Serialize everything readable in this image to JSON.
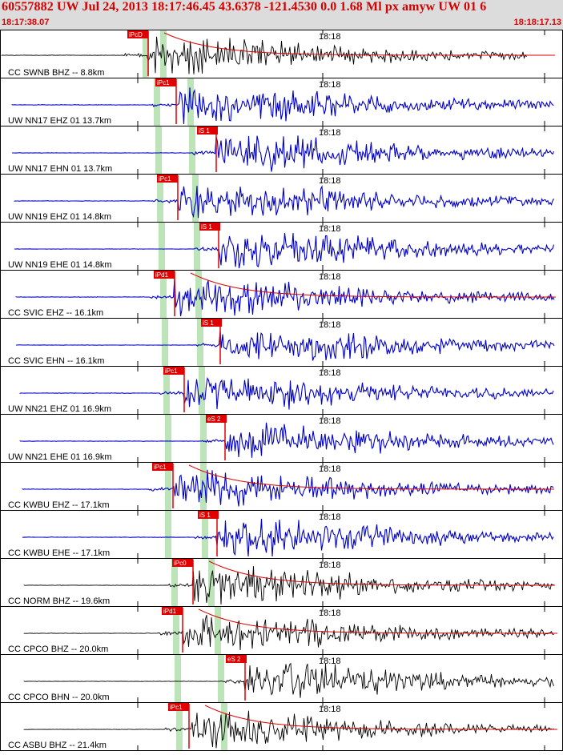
{
  "header": {
    "title": "60557882 UW Jul 24, 2013 18:17:46.45   43.6378 -121.4530  0.0 1.68 Ml px amyw UW 01   6",
    "start_time": "18:17:38.07",
    "end_time": "18:18:17.13"
  },
  "colors": {
    "header_bg": "#dcdcdc",
    "header_text": "#d40000",
    "pick": "#e00000",
    "window_band": "#bde3b8",
    "blue_trace": "#0000c8",
    "black_trace": "#000000"
  },
  "traces": [
    {
      "station": "CC SWNB BHZ -- 8.8km",
      "pick": "iPcD",
      "minute_mark": "18:18",
      "color": "black",
      "coda": true
    },
    {
      "station": "UW NN17 EHZ 01 13.7km",
      "pick": "iPc1",
      "minute_mark": "18:18",
      "color": "blue",
      "coda": false
    },
    {
      "station": "UW NN17 EHN 01 13.7km",
      "pick": "iS 1",
      "minute_mark": "18:18",
      "color": "blue",
      "coda": false
    },
    {
      "station": "UW NN19 EHZ 01 14.8km",
      "pick": "iPc1",
      "minute_mark": "18:18",
      "color": "blue",
      "coda": false
    },
    {
      "station": "UW NN19 EHE 01 14.8km",
      "pick": "iS 1",
      "minute_mark": "18:18",
      "color": "blue",
      "coda": false
    },
    {
      "station": "CC SVIC EHZ -- 16.1km",
      "pick": "iPd1",
      "minute_mark": "18:18",
      "color": "blue",
      "coda": true
    },
    {
      "station": "CC SVIC EHN -- 16.1km",
      "pick": "iS 1",
      "minute_mark": "18:18",
      "color": "blue",
      "coda": false
    },
    {
      "station": "UW NN21 EHZ 01 16.9km",
      "pick": "iPc1",
      "minute_mark": "18:18",
      "color": "blue",
      "coda": false
    },
    {
      "station": "UW NN21 EHE 01 16.9km",
      "pick": "eS 2",
      "minute_mark": "18:18",
      "color": "blue",
      "coda": false
    },
    {
      "station": "CC KWBU EHZ -- 17.1km",
      "pick": "iPc1",
      "minute_mark": "18:18",
      "color": "blue",
      "coda": true
    },
    {
      "station": "CC KWBU EHE -- 17.1km",
      "pick": "iS 1",
      "minute_mark": "18:18",
      "color": "blue",
      "coda": false
    },
    {
      "station": "CC NORM BHZ -- 19.6km",
      "pick": "iPc0",
      "minute_mark": "18:18",
      "color": "black",
      "coda": true
    },
    {
      "station": "CC CPCO BHZ -- 20.0km",
      "pick": "iPd1",
      "minute_mark": "18:18",
      "color": "black",
      "coda": true
    },
    {
      "station": "CC CPCO BHN -- 20.0km",
      "pick": "eS 2",
      "minute_mark": "18:18",
      "color": "black",
      "coda": false
    },
    {
      "station": "CC ASBU BHZ -- 21.4km",
      "pick": "iPc1",
      "minute_mark": "18:18",
      "color": "black",
      "coda": true
    }
  ]
}
